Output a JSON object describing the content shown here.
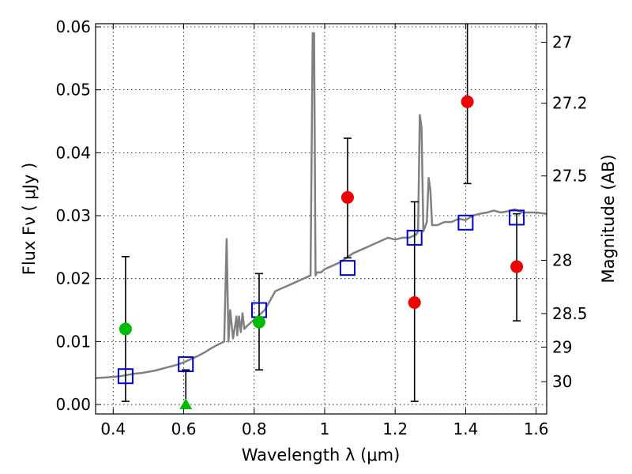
{
  "chart_data": {
    "type": "scatter",
    "title": "",
    "xlabel": "Wavelength  λ (μm)",
    "ylabel": "Flux  Fν  ( μJy )",
    "y2label": "Magnitude (AB)",
    "xlim": [
      0.35,
      1.63
    ],
    "ylim": [
      -0.0015,
      0.0605
    ],
    "grid": true,
    "x_ticks": [
      {
        "v": 0.4,
        "label": "0.4"
      },
      {
        "v": 0.6,
        "label": "0.6"
      },
      {
        "v": 0.8,
        "label": "0.8"
      },
      {
        "v": 1.0,
        "label": "1"
      },
      {
        "v": 1.2,
        "label": "1.2"
      },
      {
        "v": 1.4,
        "label": "1.4"
      },
      {
        "v": 1.6,
        "label": "1.6"
      }
    ],
    "y_ticks": [
      {
        "v": 0.0,
        "label": "0.00"
      },
      {
        "v": 0.01,
        "label": "0.01"
      },
      {
        "v": 0.02,
        "label": "0.02"
      },
      {
        "v": 0.03,
        "label": "0.03"
      },
      {
        "v": 0.04,
        "label": "0.04"
      },
      {
        "v": 0.05,
        "label": "0.05"
      },
      {
        "v": 0.06,
        "label": "0.06"
      }
    ],
    "mag_ticks": [
      {
        "v": 27,
        "label": "27"
      },
      {
        "v": 27.2,
        "label": "27.2"
      },
      {
        "v": 27.5,
        "label": "27.5"
      },
      {
        "v": 28,
        "label": "28"
      },
      {
        "v": 28.5,
        "label": "28.5"
      },
      {
        "v": 29,
        "label": "29"
      },
      {
        "v": 30,
        "label": "30"
      }
    ],
    "spectrum": {
      "color": "#808080",
      "x": [
        0.35,
        0.38,
        0.4,
        0.42,
        0.44,
        0.46,
        0.48,
        0.5,
        0.52,
        0.54,
        0.56,
        0.58,
        0.6,
        0.62,
        0.64,
        0.66,
        0.68,
        0.7,
        0.715,
        0.722,
        0.727,
        0.732,
        0.74,
        0.75,
        0.752,
        0.757,
        0.762,
        0.767,
        0.772,
        0.78,
        0.79,
        0.8,
        0.81,
        0.82,
        0.83,
        0.84,
        0.85,
        0.86,
        0.88,
        0.9,
        0.92,
        0.94,
        0.96,
        0.966,
        0.97,
        0.974,
        0.978,
        0.99,
        1.0,
        1.02,
        1.04,
        1.06,
        1.08,
        1.1,
        1.12,
        1.14,
        1.16,
        1.18,
        1.2,
        1.22,
        1.24,
        1.26,
        1.265,
        1.27,
        1.275,
        1.28,
        1.29,
        1.295,
        1.3,
        1.305,
        1.32,
        1.34,
        1.36,
        1.38,
        1.4,
        1.42,
        1.44,
        1.46,
        1.48,
        1.5,
        1.52,
        1.54,
        1.56,
        1.58,
        1.6,
        1.63
      ],
      "y": [
        0.0042,
        0.0043,
        0.0044,
        0.0045,
        0.0047,
        0.0049,
        0.005,
        0.0052,
        0.0054,
        0.0057,
        0.006,
        0.0063,
        0.0067,
        0.0072,
        0.0077,
        0.0083,
        0.009,
        0.0096,
        0.01,
        0.0263,
        0.01,
        0.015,
        0.0105,
        0.014,
        0.011,
        0.014,
        0.0115,
        0.0145,
        0.012,
        0.0125,
        0.013,
        0.0135,
        0.014,
        0.0145,
        0.015,
        0.016,
        0.017,
        0.018,
        0.0185,
        0.019,
        0.0195,
        0.02,
        0.0205,
        0.059,
        0.059,
        0.0205,
        0.021,
        0.021,
        0.0215,
        0.022,
        0.0225,
        0.0232,
        0.024,
        0.0245,
        0.025,
        0.0255,
        0.026,
        0.0265,
        0.0262,
        0.0265,
        0.0265,
        0.027,
        0.0275,
        0.046,
        0.044,
        0.0275,
        0.029,
        0.036,
        0.034,
        0.0285,
        0.0285,
        0.029,
        0.029,
        0.0295,
        0.0293,
        0.03,
        0.0303,
        0.0305,
        0.0308,
        0.0305,
        0.0307,
        0.031,
        0.0305,
        0.0305,
        0.0305,
        0.0303
      ]
    },
    "series": [
      {
        "marker": "square",
        "color": "#0000cc",
        "points": [
          {
            "x": 0.435,
            "y": 0.0045
          },
          {
            "x": 0.606,
            "y": 0.0064
          },
          {
            "x": 0.814,
            "y": 0.015
          },
          {
            "x": 1.065,
            "y": 0.0217
          },
          {
            "x": 1.255,
            "y": 0.0265
          },
          {
            "x": 1.4,
            "y": 0.0289
          },
          {
            "x": 1.545,
            "y": 0.0297
          }
        ]
      },
      {
        "marker": "circle",
        "color": "#00bb00",
        "points": [
          {
            "x": 0.435,
            "y": 0.012,
            "ylow": 0.0005,
            "yhigh": 0.0235
          },
          {
            "x": 0.814,
            "y": 0.0131,
            "ylow": 0.0055,
            "yhigh": 0.0208
          }
        ]
      },
      {
        "marker": "triangle",
        "color": "#00bb00",
        "points": [
          {
            "x": 0.606,
            "y": 0.0,
            "ylow": -0.0005,
            "yhigh": 0.0055
          }
        ]
      },
      {
        "marker": "circle",
        "color": "#ee0000",
        "points": [
          {
            "x": 1.065,
            "y": 0.0329,
            "ylow": 0.0233,
            "yhigh": 0.0423
          },
          {
            "x": 1.255,
            "y": 0.0162,
            "ylow": 0.0005,
            "yhigh": 0.0322
          },
          {
            "x": 1.405,
            "y": 0.0481,
            "ylow": 0.0351,
            "yhigh": 0.0611
          },
          {
            "x": 1.545,
            "y": 0.0219,
            "ylow": 0.0133,
            "yhigh": 0.0303
          }
        ]
      }
    ]
  }
}
